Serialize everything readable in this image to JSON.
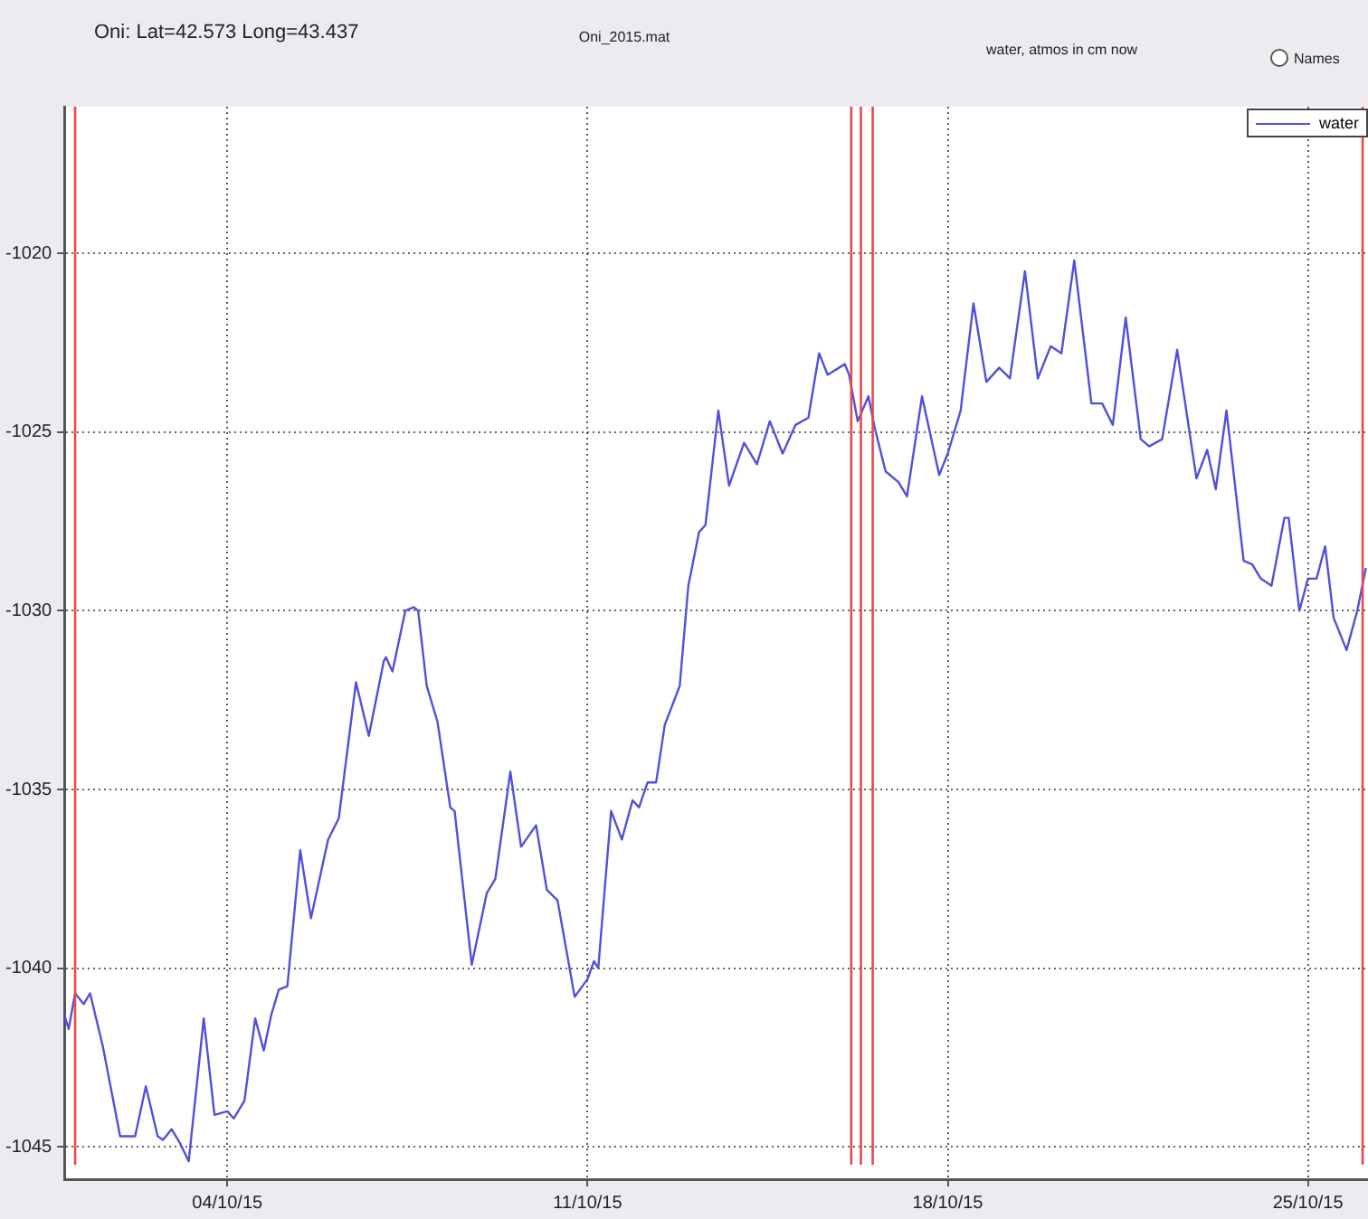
{
  "chart_data": {
    "type": "line",
    "title": "Oni: Lat=42.573 Long=43.437",
    "subtitle": "Oni_2015.mat",
    "annotations": [
      "water, atmos in cm now",
      "Names"
    ],
    "legend": "top right",
    "grid": true,
    "line_style": "solid",
    "marker": "none",
    "xlim": [
      "2015-09-30T20:00",
      "2015-10-26T04:00"
    ],
    "xticks": [
      {
        "value": "2015-10-04",
        "label": "04/10/15"
      },
      {
        "value": "2015-10-11",
        "label": "11/10/15"
      },
      {
        "value": "2015-10-18",
        "label": "18/10/15"
      },
      {
        "value": "2015-10-25",
        "label": "25/10/15"
      }
    ],
    "ylim": [
      -1045.9,
      -1015.9
    ],
    "yticks": [
      -1045,
      -1040,
      -1035,
      -1030,
      -1025,
      -1020
    ],
    "ref_lines": [
      {
        "axis": "x",
        "value": "2015-10-01T01:00",
        "color": "#e84a4a"
      },
      {
        "axis": "x",
        "value": "2015-10-16T03:00",
        "color": "#e84a4a"
      },
      {
        "axis": "x",
        "value": "2015-10-16T07:30",
        "color": "#e84a4a"
      },
      {
        "axis": "x",
        "value": "2015-10-16T13:00",
        "color": "#e84a4a"
      },
      {
        "axis": "x",
        "value": "2015-10-26T01:30",
        "color": "#e84a4a"
      }
    ],
    "series": [
      {
        "name": "water",
        "color": "#5050dc",
        "x": [
          "2015-09-30T20:00",
          "2015-09-30T22:00",
          "2015-10-01T01:00",
          "2015-10-01T05:00",
          "2015-10-01T08:00",
          "2015-10-01T14:00",
          "2015-10-01T22:00",
          "2015-10-02T01:00",
          "2015-10-02T05:00",
          "2015-10-02T10:00",
          "2015-10-02T15:30",
          "2015-10-02T18:00",
          "2015-10-02T22:00",
          "2015-10-03T02:00",
          "2015-10-03T06:00",
          "2015-10-03T13:00",
          "2015-10-03T18:00",
          "2015-10-04T00:00",
          "2015-10-04T03:00",
          "2015-10-04T08:00",
          "2015-10-04T13:00",
          "2015-10-04T17:00",
          "2015-10-04T20:30",
          "2015-10-05T00:00",
          "2015-10-05T04:00",
          "2015-10-05T10:00",
          "2015-10-05T15:00",
          "2015-10-05T23:00",
          "2015-10-06T04:00",
          "2015-10-06T12:00",
          "2015-10-06T18:00",
          "2015-10-07T01:00",
          "2015-10-07T02:00",
          "2015-10-07T05:00",
          "2015-10-07T11:00",
          "2015-10-07T15:00",
          "2015-10-07T17:00",
          "2015-10-07T21:00",
          "2015-10-08T02:00",
          "2015-10-08T08:00",
          "2015-10-08T10:00",
          "2015-10-08T18:00",
          "2015-10-09T01:00",
          "2015-10-09T05:00",
          "2015-10-09T12:00",
          "2015-10-09T17:00",
          "2015-10-10T00:00",
          "2015-10-10T05:00",
          "2015-10-10T10:00",
          "2015-10-10T18:00",
          "2015-10-11T00:00",
          "2015-10-11T03:00",
          "2015-10-11T05:00",
          "2015-10-11T11:00",
          "2015-10-11T16:00",
          "2015-10-11T21:00",
          "2015-10-12T00:00",
          "2015-10-12T04:00",
          "2015-10-12T08:00",
          "2015-10-12T12:00",
          "2015-10-12T19:00",
          "2015-10-12T23:00",
          "2015-10-13T04:00",
          "2015-10-13T07:00",
          "2015-10-13T13:00",
          "2015-10-13T18:00",
          "2015-10-14T01:00",
          "2015-10-14T07:00",
          "2015-10-14T13:00",
          "2015-10-14T19:00",
          "2015-10-15T01:00",
          "2015-10-15T07:00",
          "2015-10-15T12:00",
          "2015-10-15T16:00",
          "2015-10-16T00:00",
          "2015-10-16T02:00",
          "2015-10-16T06:00",
          "2015-10-16T11:00",
          "2015-10-16T14:00",
          "2015-10-16T19:00",
          "2015-10-17T01:00",
          "2015-10-17T05:00",
          "2015-10-17T12:00",
          "2015-10-17T20:00",
          "2015-10-18T00:00",
          "2015-10-18T06:00",
          "2015-10-18T12:00",
          "2015-10-18T18:00",
          "2015-10-19T00:00",
          "2015-10-19T05:00",
          "2015-10-19T12:00",
          "2015-10-19T18:00",
          "2015-10-20T00:00",
          "2015-10-20T05:00",
          "2015-10-20T11:00",
          "2015-10-20T19:00",
          "2015-10-21T00:00",
          "2015-10-21T05:00",
          "2015-10-21T11:00",
          "2015-10-21T18:00",
          "2015-10-21T22:00",
          "2015-10-22T04:00",
          "2015-10-22T11:00",
          "2015-10-22T20:00",
          "2015-10-23T01:00",
          "2015-10-23T05:00",
          "2015-10-23T10:00",
          "2015-10-23T18:00",
          "2015-10-23T22:00",
          "2015-10-24T02:00",
          "2015-10-24T07:00",
          "2015-10-24T13:00",
          "2015-10-24T15:00",
          "2015-10-24T20:00",
          "2015-10-25T00:00",
          "2015-10-25T04:00",
          "2015-10-25T08:00",
          "2015-10-25T12:00",
          "2015-10-25T18:00",
          "2015-10-25T23:00",
          "2015-10-26T03:00"
        ],
        "values": [
          -1041.3,
          -1041.7,
          -1040.7,
          -1041.0,
          -1040.7,
          -1042.2,
          -1044.7,
          -1044.7,
          -1044.7,
          -1043.3,
          -1044.7,
          -1044.8,
          -1044.5,
          -1044.9,
          -1045.4,
          -1041.4,
          -1044.1,
          -1044.0,
          -1044.2,
          -1043.7,
          -1041.4,
          -1042.3,
          -1041.3,
          -1040.6,
          -1040.5,
          -1036.7,
          -1038.6,
          -1036.4,
          -1035.8,
          -1032.0,
          -1033.5,
          -1031.4,
          -1031.3,
          -1031.7,
          -1030.0,
          -1029.9,
          -1030.0,
          -1032.1,
          -1033.1,
          -1035.5,
          -1035.6,
          -1039.9,
          -1037.9,
          -1037.5,
          -1034.5,
          -1036.6,
          -1036.0,
          -1037.8,
          -1038.1,
          -1040.8,
          -1040.3,
          -1039.8,
          -1040.0,
          -1035.6,
          -1036.4,
          -1035.3,
          -1035.5,
          -1034.8,
          -1034.8,
          -1033.2,
          -1032.1,
          -1029.3,
          -1027.8,
          -1027.6,
          -1024.4,
          -1026.5,
          -1025.3,
          -1025.9,
          -1024.7,
          -1025.6,
          -1024.8,
          -1024.6,
          -1022.8,
          -1023.4,
          -1023.1,
          -1023.4,
          -1024.7,
          -1024.0,
          -1024.9,
          -1026.1,
          -1026.4,
          -1026.8,
          -1024.0,
          -1026.2,
          -1025.6,
          -1024.4,
          -1021.4,
          -1023.6,
          -1023.2,
          -1023.5,
          -1020.5,
          -1023.5,
          -1022.6,
          -1022.8,
          -1020.2,
          -1024.2,
          -1024.2,
          -1024.8,
          -1021.8,
          -1025.2,
          -1025.4,
          -1025.2,
          -1022.7,
          -1026.3,
          -1025.5,
          -1026.6,
          -1024.4,
          -1028.6,
          -1028.7,
          -1029.1,
          -1029.3,
          -1027.4,
          -1027.4,
          -1030.0,
          -1029.1,
          -1029.1,
          -1028.2,
          -1030.2,
          -1031.1,
          -1030.0,
          -1028.8
        ]
      }
    ]
  }
}
